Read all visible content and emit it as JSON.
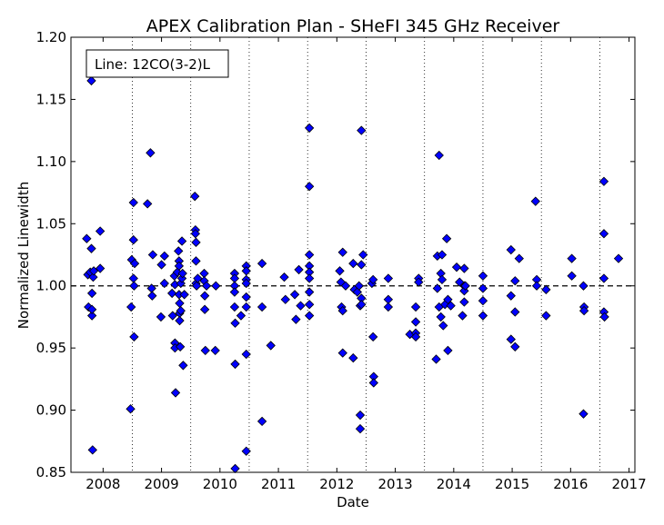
{
  "chart_data": {
    "type": "scatter",
    "title": "APEX Calibration Plan - SHeFI 345 GHz Receiver",
    "xlabel": "Date",
    "ylabel": "Normalized Linewidth",
    "legend_label": "Line: 12CO(3-2)L",
    "legend_position": "top-left",
    "xlim": [
      2007.45,
      2017.1
    ],
    "ylim": [
      0.85,
      1.2
    ],
    "x_ticks": [
      2008,
      2009,
      2010,
      2011,
      2012,
      2013,
      2014,
      2015,
      2016,
      2017
    ],
    "x_tick_labels": [
      "2008",
      "2009",
      "2010",
      "2011",
      "2012",
      "2013",
      "2014",
      "2015",
      "2016",
      "2017"
    ],
    "y_ticks": [
      0.85,
      0.9,
      0.95,
      1.0,
      1.05,
      1.1,
      1.15,
      1.2
    ],
    "y_tick_labels": [
      "0.85",
      "0.90",
      "0.95",
      "1.00",
      "1.05",
      "1.10",
      "1.15",
      "1.20"
    ],
    "reference_line_y": 1.0,
    "season_lines_x": [
      2008.5,
      2009.5,
      2010.5,
      2011.5,
      2012.5,
      2013.5,
      2014.5,
      2015.5,
      2016.5
    ],
    "marker_color": "#0000ff",
    "marker_edge_color": "#000000",
    "series": [
      {
        "points": [
          [
            2007.72,
            1.038
          ],
          [
            2007.74,
            1.009
          ],
          [
            2007.75,
            0.983
          ],
          [
            2007.78,
            1.011
          ],
          [
            2007.8,
            1.165
          ],
          [
            2007.8,
            1.03
          ],
          [
            2007.81,
            0.994
          ],
          [
            2007.81,
            0.976
          ],
          [
            2007.81,
            0.981
          ],
          [
            2007.82,
            0.868
          ],
          [
            2007.83,
            1.007
          ],
          [
            2007.84,
            1.012
          ],
          [
            2007.95,
            1.044
          ],
          [
            2007.95,
            1.014
          ],
          [
            2008.47,
            0.901
          ],
          [
            2008.48,
            0.983
          ],
          [
            2008.49,
            1.021
          ],
          [
            2008.52,
            1.037
          ],
          [
            2008.52,
            1.067
          ],
          [
            2008.52,
            1.006
          ],
          [
            2008.53,
            0.959
          ],
          [
            2008.53,
            1.0
          ],
          [
            2008.54,
            1.018
          ],
          [
            2008.76,
            1.066
          ],
          [
            2008.81,
            1.107
          ],
          [
            2008.83,
            0.998
          ],
          [
            2008.84,
            0.992
          ],
          [
            2008.85,
            1.025
          ],
          [
            2008.99,
            0.975
          ],
          [
            2009.0,
            1.017
          ],
          [
            2009.05,
            1.024
          ],
          [
            2009.05,
            1.002
          ],
          [
            2009.18,
            0.994
          ],
          [
            2009.19,
            0.976
          ],
          [
            2009.22,
            1.008
          ],
          [
            2009.23,
            1.001
          ],
          [
            2009.23,
            0.954
          ],
          [
            2009.23,
            0.95
          ],
          [
            2009.24,
            0.914
          ],
          [
            2009.27,
            1.011
          ],
          [
            2009.29,
            1.028
          ],
          [
            2009.3,
            1.02
          ],
          [
            2009.3,
            1.016
          ],
          [
            2009.3,
            0.993
          ],
          [
            2009.31,
            0.986
          ],
          [
            2009.31,
            0.978
          ],
          [
            2009.31,
            0.972
          ],
          [
            2009.32,
            0.951
          ],
          [
            2009.33,
            1.002
          ],
          [
            2009.33,
            0.98
          ],
          [
            2009.35,
            1.036
          ],
          [
            2009.35,
            1.006
          ],
          [
            2009.36,
            1.01
          ],
          [
            2009.37,
            0.936
          ],
          [
            2009.39,
            0.993
          ],
          [
            2009.57,
            1.072
          ],
          [
            2009.58,
            1.045
          ],
          [
            2009.58,
            1.042
          ],
          [
            2009.59,
            1.035
          ],
          [
            2009.59,
            1.02
          ],
          [
            2009.59,
            1.002
          ],
          [
            2009.6,
            1.0
          ],
          [
            2009.62,
            1.006
          ],
          [
            2009.73,
            1.01
          ],
          [
            2009.73,
            1.004
          ],
          [
            2009.74,
            0.992
          ],
          [
            2009.74,
            0.981
          ],
          [
            2009.75,
            0.948
          ],
          [
            2009.77,
            1.0
          ],
          [
            2009.92,
            0.948
          ],
          [
            2009.93,
            1.0
          ],
          [
            2010.25,
            1.01
          ],
          [
            2010.25,
            1.006
          ],
          [
            2010.25,
            1.0
          ],
          [
            2010.25,
            0.995
          ],
          [
            2010.25,
            0.983
          ],
          [
            2010.26,
            0.97
          ],
          [
            2010.26,
            0.937
          ],
          [
            2010.26,
            0.853
          ],
          [
            2010.36,
            0.976
          ],
          [
            2010.45,
            1.016
          ],
          [
            2010.45,
            1.012
          ],
          [
            2010.45,
            1.005
          ],
          [
            2010.45,
            1.002
          ],
          [
            2010.45,
            0.991
          ],
          [
            2010.45,
            0.983
          ],
          [
            2010.45,
            0.945
          ],
          [
            2010.45,
            0.867
          ],
          [
            2010.72,
            1.018
          ],
          [
            2010.72,
            0.983
          ],
          [
            2010.72,
            0.891
          ],
          [
            2010.87,
            0.952
          ],
          [
            2011.1,
            1.007
          ],
          [
            2011.12,
            0.989
          ],
          [
            2011.28,
            0.993
          ],
          [
            2011.3,
            0.973
          ],
          [
            2011.35,
            1.013
          ],
          [
            2011.38,
            0.984
          ],
          [
            2011.53,
            1.127
          ],
          [
            2011.53,
            1.08
          ],
          [
            2011.53,
            1.025
          ],
          [
            2011.53,
            1.016
          ],
          [
            2011.53,
            1.011
          ],
          [
            2011.53,
            1.006
          ],
          [
            2011.53,
            0.995
          ],
          [
            2011.53,
            0.985
          ],
          [
            2011.53,
            0.976
          ],
          [
            2012.05,
            1.012
          ],
          [
            2012.07,
            1.003
          ],
          [
            2012.08,
            0.983
          ],
          [
            2012.1,
            1.027
          ],
          [
            2012.1,
            0.98
          ],
          [
            2012.1,
            0.946
          ],
          [
            2012.15,
            1.0
          ],
          [
            2012.28,
            1.018
          ],
          [
            2012.28,
            0.942
          ],
          [
            2012.3,
            0.997
          ],
          [
            2012.35,
            0.995
          ],
          [
            2012.38,
            1.0
          ],
          [
            2012.4,
            0.984
          ],
          [
            2012.4,
            0.896
          ],
          [
            2012.4,
            0.885
          ],
          [
            2012.42,
            1.125
          ],
          [
            2012.42,
            1.017
          ],
          [
            2012.42,
            0.99
          ],
          [
            2012.42,
            0.985
          ],
          [
            2012.45,
            1.025
          ],
          [
            2012.6,
            1.002
          ],
          [
            2012.62,
            1.005
          ],
          [
            2012.62,
            0.959
          ],
          [
            2012.63,
            0.927
          ],
          [
            2012.63,
            0.922
          ],
          [
            2012.88,
            1.006
          ],
          [
            2012.88,
            0.989
          ],
          [
            2012.88,
            0.983
          ],
          [
            2013.25,
            0.961
          ],
          [
            2013.35,
            0.983
          ],
          [
            2013.35,
            0.971
          ],
          [
            2013.35,
            0.962
          ],
          [
            2013.35,
            0.959
          ],
          [
            2013.4,
            1.006
          ],
          [
            2013.4,
            1.003
          ],
          [
            2013.7,
            0.941
          ],
          [
            2013.72,
            1.024
          ],
          [
            2013.72,
            0.998
          ],
          [
            2013.75,
            1.105
          ],
          [
            2013.75,
            0.983
          ],
          [
            2013.78,
            1.01
          ],
          [
            2013.78,
            0.975
          ],
          [
            2013.8,
            1.025
          ],
          [
            2013.8,
            1.005
          ],
          [
            2013.82,
            0.968
          ],
          [
            2013.85,
            0.985
          ],
          [
            2013.88,
            1.038
          ],
          [
            2013.9,
            0.989
          ],
          [
            2013.9,
            0.948
          ],
          [
            2013.95,
            0.984
          ],
          [
            2014.05,
            1.015
          ],
          [
            2014.1,
            1.003
          ],
          [
            2014.15,
            0.976
          ],
          [
            2014.18,
            1.014
          ],
          [
            2014.18,
            1.0
          ],
          [
            2014.18,
            0.996
          ],
          [
            2014.18,
            0.987
          ],
          [
            2014.2,
            1.0
          ],
          [
            2014.5,
            1.008
          ],
          [
            2014.5,
            0.998
          ],
          [
            2014.5,
            0.988
          ],
          [
            2014.5,
            0.976
          ],
          [
            2014.98,
            1.029
          ],
          [
            2014.98,
            0.992
          ],
          [
            2014.98,
            0.957
          ],
          [
            2015.05,
            1.004
          ],
          [
            2015.05,
            0.979
          ],
          [
            2015.05,
            0.951
          ],
          [
            2015.12,
            1.022
          ],
          [
            2015.4,
            1.068
          ],
          [
            2015.42,
            1.005
          ],
          [
            2015.42,
            1.0
          ],
          [
            2015.58,
            0.997
          ],
          [
            2015.58,
            0.976
          ],
          [
            2016.02,
            1.022
          ],
          [
            2016.02,
            1.008
          ],
          [
            2016.22,
            1.0
          ],
          [
            2016.23,
            0.983
          ],
          [
            2016.23,
            0.98
          ],
          [
            2016.22,
            0.897
          ],
          [
            2016.57,
            1.084
          ],
          [
            2016.57,
            1.042
          ],
          [
            2016.57,
            1.006
          ],
          [
            2016.57,
            0.979
          ],
          [
            2016.58,
            0.975
          ],
          [
            2016.82,
            1.022
          ]
        ]
      }
    ]
  }
}
